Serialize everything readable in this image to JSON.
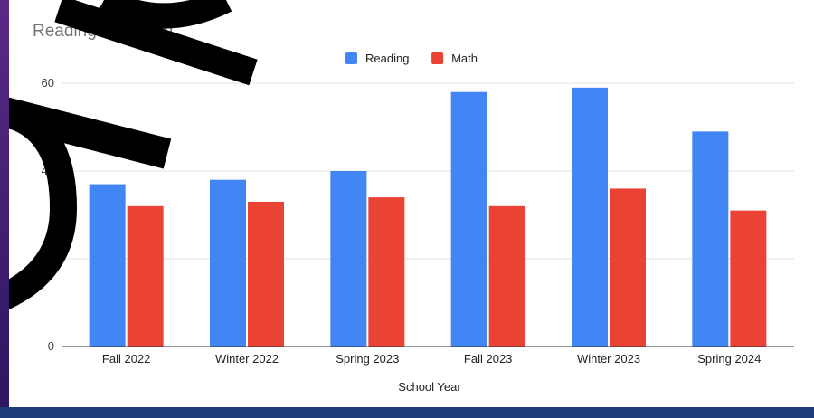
{
  "colors": {
    "reading": "#4285f4",
    "math": "#ea4335",
    "grid": "#e3e3e3",
    "axis": "#333333",
    "decoration_stroke": "#000000"
  },
  "chart_data": {
    "type": "bar",
    "title": "Reading and Math",
    "xlabel": "School Year",
    "ylabel": "",
    "categories": [
      "Fall 2022",
      "Winter 2022",
      "Spring 2023",
      "Fall 2023",
      "Winter 2023",
      "Spring 2024"
    ],
    "series": [
      {
        "name": "Reading",
        "values": [
          37,
          38,
          40,
          58,
          59,
          49
        ]
      },
      {
        "name": "Math",
        "values": [
          32,
          33,
          34,
          32,
          36,
          31
        ]
      }
    ],
    "ylim": [
      0,
      60
    ],
    "yticks": [
      0,
      20,
      40,
      60
    ],
    "grid": true,
    "legend_position": "top-center"
  }
}
